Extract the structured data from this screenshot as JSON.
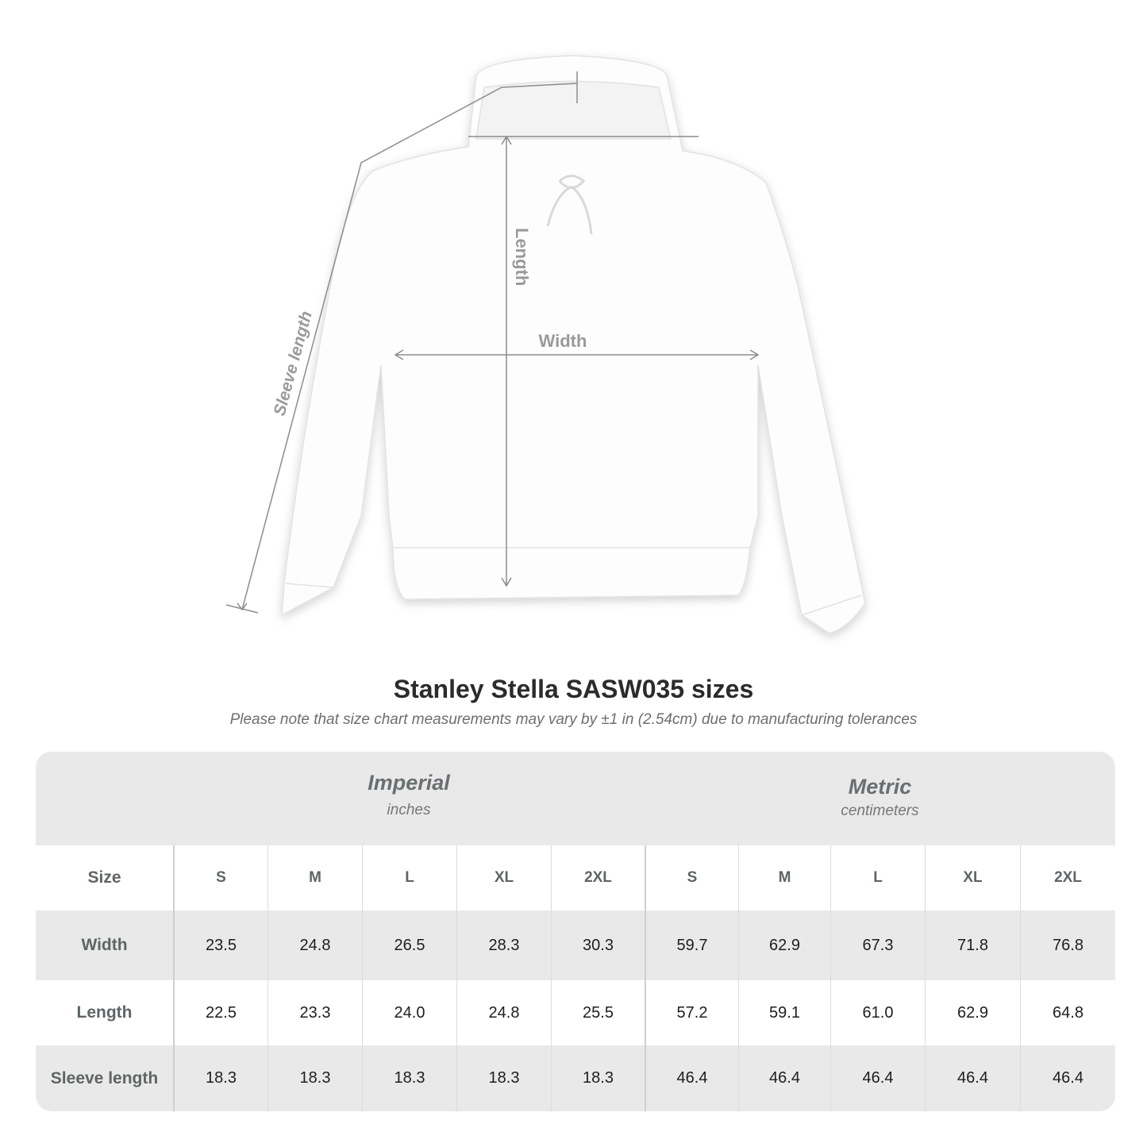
{
  "diagram": {
    "labels": {
      "length": "Length",
      "width": "Width",
      "sleeve": "Sleeve length"
    },
    "garment_color": "#ffffff",
    "line_color": "#8c8c8c"
  },
  "title": "Stanley Stella SASW035 sizes",
  "note": "Please note that size chart measurements may vary by ±1 in (2.54cm) due to manufacturing tolerances",
  "table": {
    "imperial": {
      "name": "Imperial",
      "unit": "inches"
    },
    "metric": {
      "name": "Metric",
      "unit": "centimeters"
    },
    "size_label": "Size",
    "sizes": [
      "S",
      "M",
      "L",
      "XL",
      "2XL"
    ],
    "rows": [
      {
        "label": "Width",
        "imperial": [
          "23.5",
          "24.8",
          "26.5",
          "28.3",
          "30.3"
        ],
        "metric": [
          "59.7",
          "62.9",
          "67.3",
          "71.8",
          "76.8"
        ]
      },
      {
        "label": "Length",
        "imperial": [
          "22.5",
          "23.3",
          "24.0",
          "24.8",
          "25.5"
        ],
        "metric": [
          "57.2",
          "59.1",
          "61.0",
          "62.9",
          "64.8"
        ]
      },
      {
        "label": "Sleeve length",
        "imperial": [
          "18.3",
          "18.3",
          "18.3",
          "18.3",
          "18.3"
        ],
        "metric": [
          "46.4",
          "46.4",
          "46.4",
          "46.4",
          "46.4"
        ]
      }
    ]
  }
}
